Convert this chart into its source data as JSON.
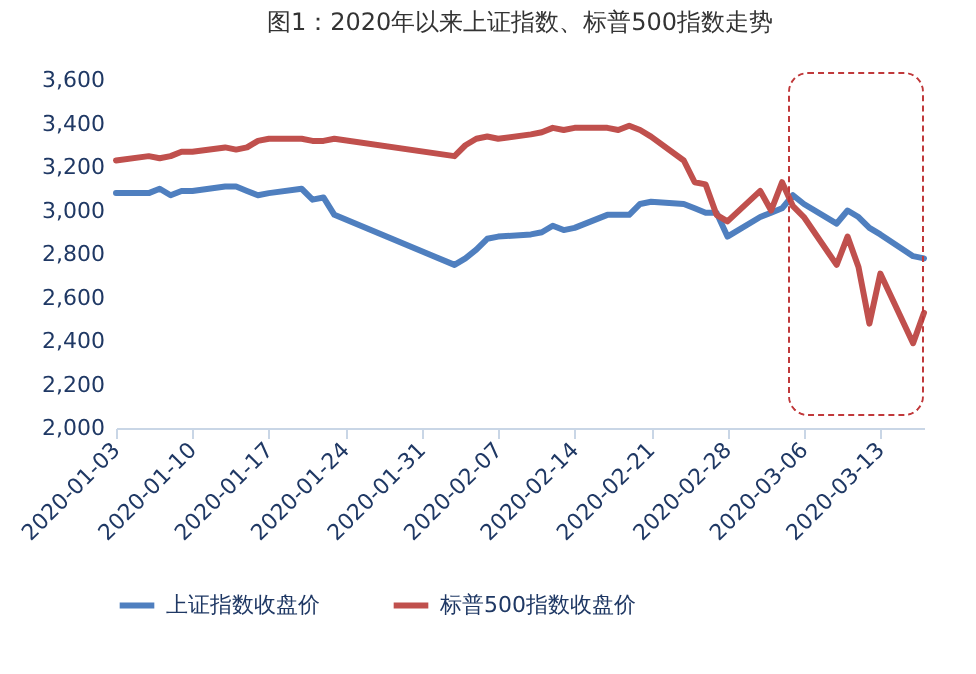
{
  "chart_data": {
    "type": "line",
    "title": "图1：2020年以来上证指数、标普500指数走势",
    "x": [
      "2020-01-03",
      "2020-01-06",
      "2020-01-07",
      "2020-01-08",
      "2020-01-09",
      "2020-01-10",
      "2020-01-13",
      "2020-01-14",
      "2020-01-15",
      "2020-01-16",
      "2020-01-17",
      "2020-01-20",
      "2020-01-21",
      "2020-01-22",
      "2020-01-23",
      "2020-02-03",
      "2020-02-04",
      "2020-02-05",
      "2020-02-06",
      "2020-02-07",
      "2020-02-10",
      "2020-02-11",
      "2020-02-12",
      "2020-02-13",
      "2020-02-14",
      "2020-02-17",
      "2020-02-18",
      "2020-02-19",
      "2020-02-20",
      "2020-02-21",
      "2020-02-24",
      "2020-02-25",
      "2020-02-26",
      "2020-02-27",
      "2020-02-28",
      "2020-03-02",
      "2020-03-03",
      "2020-03-04",
      "2020-03-05",
      "2020-03-06",
      "2020-03-09",
      "2020-03-10",
      "2020-03-11",
      "2020-03-12",
      "2020-03-13",
      "2020-03-16",
      "2020-03-17"
    ],
    "series": [
      {
        "name": "上证指数收盘价",
        "color": "#4f7fbf",
        "values": [
          3080,
          3080,
          3100,
          3070,
          3090,
          3090,
          3110,
          3110,
          3090,
          3070,
          3080,
          3100,
          3050,
          3060,
          2980,
          2750,
          2780,
          2820,
          2870,
          2880,
          2890,
          2900,
          2930,
          2910,
          2920,
          2980,
          2980,
          2980,
          3030,
          3040,
          3030,
          3010,
          2990,
          2990,
          2880,
          2970,
          2990,
          3010,
          3070,
          3030,
          2940,
          3000,
          2970,
          2920,
          2890,
          2790,
          2780
        ]
      },
      {
        "name": "标普500指数收盘价",
        "color": "#c0504d",
        "values": [
          3230,
          3250,
          3240,
          3250,
          3270,
          3270,
          3290,
          3280,
          3290,
          3320,
          3330,
          3330,
          3320,
          3320,
          3330,
          3250,
          3300,
          3330,
          3340,
          3330,
          3350,
          3360,
          3380,
          3370,
          3380,
          3380,
          3370,
          3390,
          3370,
          3340,
          3230,
          3130,
          3120,
          2980,
          2950,
          3090,
          3000,
          3130,
          3020,
          2970,
          2750,
          2880,
          2740,
          2480,
          2710,
          2390,
          2530
        ]
      }
    ],
    "xlim": [
      "2020-01-03",
      "2020-03-17"
    ],
    "xticks": [
      "2020-01-03",
      "2020-01-10",
      "2020-01-17",
      "2020-01-24",
      "2020-01-31",
      "2020-02-07",
      "2020-02-14",
      "2020-02-21",
      "2020-02-28",
      "2020-03-06",
      "2020-03-13"
    ],
    "ylim": [
      2000,
      3600
    ],
    "yticks": [
      {
        "value": 2000,
        "label": "2,000"
      },
      {
        "value": 2200,
        "label": "2,200"
      },
      {
        "value": 2400,
        "label": "2,400"
      },
      {
        "value": 2600,
        "label": "2,600"
      },
      {
        "value": 2800,
        "label": "2,800"
      },
      {
        "value": 3000,
        "label": "3,000"
      },
      {
        "value": 3200,
        "label": "3,200"
      },
      {
        "value": 3400,
        "label": "3,400"
      },
      {
        "value": 3600,
        "label": "3,600"
      }
    ],
    "legend": "bottom",
    "grid": false,
    "line_style": "solid",
    "marker": "none"
  }
}
